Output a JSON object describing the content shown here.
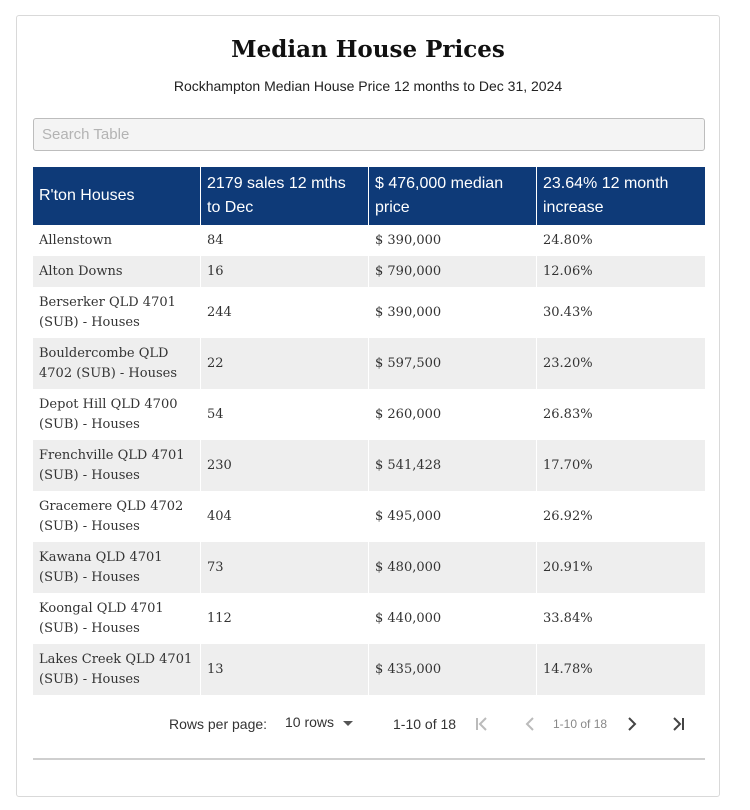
{
  "header": {
    "title": "Median House Prices",
    "subtitle": "Rockhampton Median House Price 12 months to Dec 31, 2024"
  },
  "search": {
    "placeholder": "Search Table"
  },
  "table": {
    "columns": [
      "R'ton Houses",
      "2179 sales 12 mths to Dec",
      "$ 476,000 median price",
      "23.64% 12 month increase"
    ],
    "rows": [
      [
        "Allenstown",
        "84",
        "$ 390,000",
        "24.80%"
      ],
      [
        "Alton Downs",
        "16",
        "$ 790,000",
        "12.06%"
      ],
      [
        "Berserker QLD 4701 (SUB) - Houses",
        "244",
        "$ 390,000",
        "30.43%"
      ],
      [
        "Bouldercombe QLD 4702 (SUB) - Houses",
        "22",
        "$ 597,500",
        "23.20%"
      ],
      [
        "Depot Hill QLD 4700 (SUB) - Houses",
        "54",
        "$ 260,000",
        "26.83%"
      ],
      [
        "Frenchville QLD 4701 (SUB) - Houses",
        "230",
        "$ 541,428",
        "17.70%"
      ],
      [
        "Gracemere QLD 4702 (SUB) - Houses",
        "404",
        "$ 495,000",
        "26.92%"
      ],
      [
        "Kawana QLD 4701 (SUB) - Houses",
        "73",
        "$ 480,000",
        "20.91%"
      ],
      [
        "Koongal QLD 4701 (SUB) - Houses",
        "112",
        "$ 440,000",
        "33.84%"
      ],
      [
        "Lakes Creek QLD 4701 (SUB) - Houses",
        "13",
        "$ 435,000",
        "14.78%"
      ]
    ]
  },
  "pagination": {
    "rows_per_page_label": "Rows per page:",
    "rows_per_page_value": "10 rows",
    "range": "1-10 of 18",
    "page_label": "1-10 of 18"
  },
  "colors": {
    "header_bg": "#0e3a78",
    "stripe": "#eeeeee"
  },
  "icons": [
    "first-page-icon",
    "prev-page-icon",
    "next-page-icon",
    "last-page-icon",
    "dropdown-arrow-icon"
  ]
}
